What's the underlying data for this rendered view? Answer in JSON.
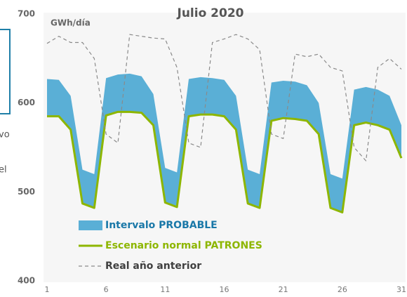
{
  "chart_data": {
    "type": "band-line",
    "title": "Julio 2020",
    "y_label": "GWh/día",
    "side_text": [
      "vo",
      "el"
    ],
    "x": [
      1,
      2,
      3,
      4,
      5,
      6,
      7,
      8,
      9,
      10,
      11,
      12,
      13,
      14,
      15,
      16,
      17,
      18,
      19,
      20,
      21,
      22,
      23,
      24,
      25,
      26,
      27,
      28,
      29,
      30,
      31
    ],
    "xlim": [
      1,
      31
    ],
    "xticks": [
      1,
      6,
      11,
      16,
      21,
      26,
      31
    ],
    "ylim": [
      400,
      700
    ],
    "yticks": [
      400,
      500,
      600,
      700
    ],
    "series": [
      {
        "name": "Intervalo PROBABLE",
        "kind": "band",
        "color": "#5aafd6",
        "text_color": "#1a78a8",
        "upper": [
          627,
          626,
          608,
          525,
          520,
          628,
          632,
          633,
          630,
          610,
          527,
          522,
          627,
          629,
          628,
          626,
          608,
          525,
          520,
          623,
          625,
          624,
          620,
          600,
          520,
          515,
          615,
          618,
          615,
          608,
          575
        ],
        "lower": [
          585,
          585,
          570,
          487,
          482,
          586,
          590,
          590,
          589,
          575,
          488,
          483,
          585,
          587,
          587,
          585,
          570,
          487,
          482,
          580,
          583,
          582,
          580,
          565,
          482,
          477,
          575,
          578,
          575,
          570,
          538
        ]
      },
      {
        "name": "Escenario normal PATRONES",
        "kind": "line",
        "color": "#8db600",
        "text_color": "#8db600",
        "values": [
          585,
          585,
          570,
          487,
          482,
          586,
          590,
          590,
          589,
          575,
          488,
          483,
          585,
          587,
          587,
          585,
          570,
          487,
          482,
          580,
          583,
          582,
          580,
          565,
          482,
          477,
          575,
          578,
          575,
          570,
          538
        ]
      },
      {
        "name": "Real año anterior",
        "kind": "dashed",
        "color": "#8a8a8a",
        "text_color": "#404040",
        "values": [
          667,
          675,
          668,
          668,
          650,
          565,
          555,
          677,
          675,
          673,
          672,
          640,
          555,
          550,
          668,
          672,
          677,
          672,
          660,
          565,
          560,
          655,
          652,
          655,
          640,
          636,
          550,
          535,
          640,
          650,
          638
        ]
      }
    ]
  }
}
